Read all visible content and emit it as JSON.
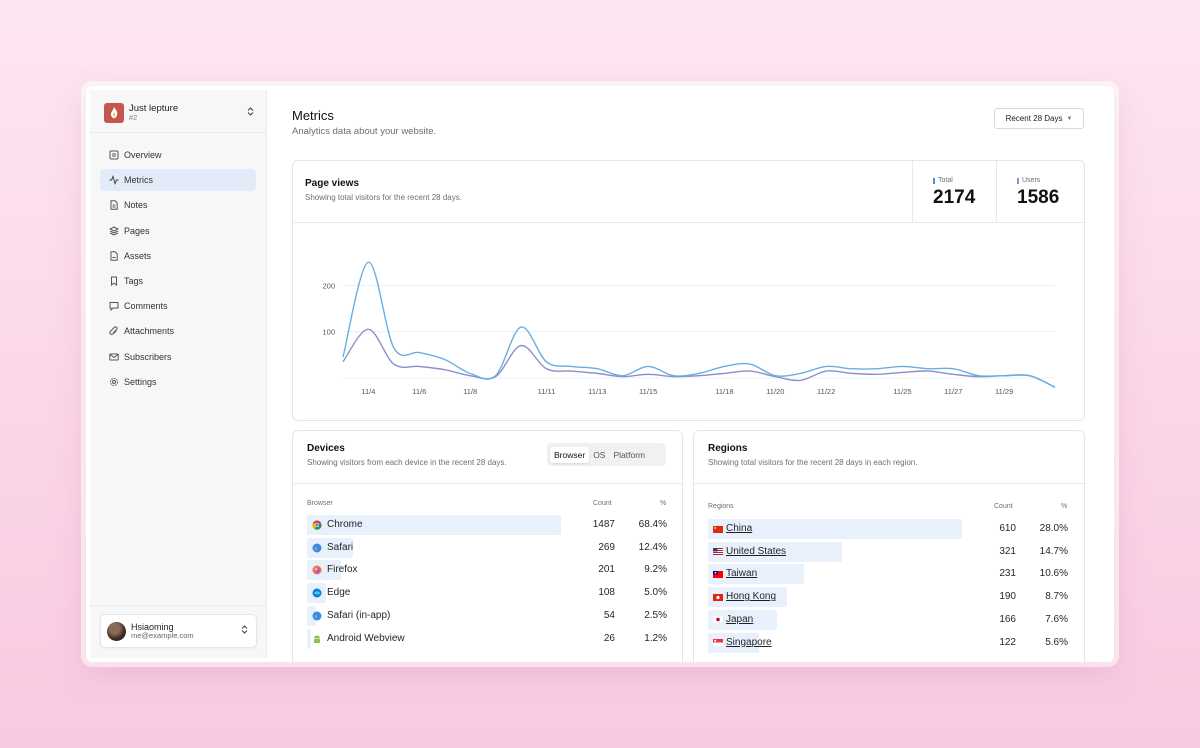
{
  "site": {
    "name": "Just lepture",
    "id": "#2"
  },
  "nav": [
    {
      "label": "Overview",
      "icon": "overview-icon",
      "active": false
    },
    {
      "label": "Metrics",
      "icon": "activity-icon",
      "active": true
    },
    {
      "label": "Notes",
      "icon": "note-icon",
      "active": false
    },
    {
      "label": "Pages",
      "icon": "layers-icon",
      "active": false
    },
    {
      "label": "Assets",
      "icon": "file-icon",
      "active": false
    },
    {
      "label": "Tags",
      "icon": "bookmark-icon",
      "active": false
    },
    {
      "label": "Comments",
      "icon": "comment-icon",
      "active": false
    },
    {
      "label": "Attachments",
      "icon": "paperclip-icon",
      "active": false
    },
    {
      "label": "Subscribers",
      "icon": "mail-icon",
      "active": false
    },
    {
      "label": "Settings",
      "icon": "gear-icon",
      "active": false
    }
  ],
  "user": {
    "name": "Hsiaoming",
    "email": "me@example.com"
  },
  "header": {
    "title": "Metrics",
    "subtitle": "Analytics data about your website.",
    "range": "Recent 28 Days"
  },
  "pageviews": {
    "title": "Page views",
    "subtitle": "Showing total visitors for the recent 28 days.",
    "total_label": "Total",
    "total": "2174",
    "users_label": "Users",
    "users": "1586"
  },
  "chart_data": {
    "type": "line",
    "title": "Page views",
    "x": [
      "11/3",
      "11/4",
      "11/5",
      "11/6",
      "11/7",
      "11/8",
      "11/9",
      "11/10",
      "11/11",
      "11/12",
      "11/13",
      "11/14",
      "11/15",
      "11/16",
      "11/17",
      "11/18",
      "11/19",
      "11/20",
      "11/21",
      "11/22",
      "11/23",
      "11/24",
      "11/25",
      "11/26",
      "11/27",
      "11/28",
      "11/29",
      "11/30",
      "12/1"
    ],
    "tick_labels": [
      "11/4",
      "11/6",
      "11/8",
      "11/11",
      "11/13",
      "11/15",
      "11/18",
      "11/20",
      "11/22",
      "11/25",
      "11/27",
      "11/29"
    ],
    "yticks": [
      100,
      200
    ],
    "ylim": [
      0,
      300
    ],
    "grid": true,
    "series": [
      {
        "name": "Total",
        "color": "#6aaee0",
        "values": [
          45,
          250,
          65,
          55,
          40,
          10,
          5,
          110,
          35,
          25,
          20,
          5,
          25,
          5,
          10,
          25,
          30,
          5,
          10,
          25,
          20,
          20,
          25,
          20,
          20,
          5,
          5,
          5,
          -20
        ]
      },
      {
        "name": "Users",
        "color": "#8b8fd0",
        "values": [
          35,
          105,
          30,
          25,
          18,
          5,
          3,
          70,
          20,
          15,
          10,
          3,
          8,
          3,
          5,
          10,
          15,
          3,
          -5,
          15,
          10,
          8,
          12,
          15,
          8,
          3,
          5,
          5,
          -20
        ]
      }
    ]
  },
  "devices": {
    "title": "Devices",
    "subtitle": "Showing visitors from each device in the recent 28 days.",
    "tabs": [
      "Browser",
      "OS",
      "Platform"
    ],
    "active_tab": "Browser",
    "col_name": "Browser",
    "col_count": "Count",
    "col_pct": "%",
    "rows": [
      {
        "name": "Chrome",
        "count": "1487",
        "pct": "68.4%",
        "icon": "chrome-icon",
        "share": 1.0
      },
      {
        "name": "Safari",
        "count": "269",
        "pct": "12.4%",
        "icon": "safari-icon",
        "share": 0.181
      },
      {
        "name": "Firefox",
        "count": "201",
        "pct": "9.2%",
        "icon": "firefox-icon",
        "share": 0.135
      },
      {
        "name": "Edge",
        "count": "108",
        "pct": "5.0%",
        "icon": "edge-icon",
        "share": 0.073
      },
      {
        "name": "Safari (in-app)",
        "count": "54",
        "pct": "2.5%",
        "icon": "safari-icon",
        "share": 0.036
      },
      {
        "name": "Android Webview",
        "count": "26",
        "pct": "1.2%",
        "icon": "android-icon",
        "share": 0.017
      }
    ]
  },
  "regions": {
    "title": "Regions",
    "subtitle": "Showing total visitors for the recent 28 days in each region.",
    "col_name": "Regions",
    "col_count": "Count",
    "col_pct": "%",
    "rows": [
      {
        "name": "China",
        "count": "610",
        "pct": "28.0%",
        "flag": "cn-flag-icon",
        "share": 1.0
      },
      {
        "name": "United States",
        "count": "321",
        "pct": "14.7%",
        "flag": "us-flag-icon",
        "share": 0.526
      },
      {
        "name": "Taiwan",
        "count": "231",
        "pct": "10.6%",
        "flag": "tw-flag-icon",
        "share": 0.379
      },
      {
        "name": "Hong Kong",
        "count": "190",
        "pct": "8.7%",
        "flag": "hk-flag-icon",
        "share": 0.311
      },
      {
        "name": "Japan",
        "count": "166",
        "pct": "7.6%",
        "flag": "jp-flag-icon",
        "share": 0.272
      },
      {
        "name": "Singapore",
        "count": "122",
        "pct": "5.6%",
        "flag": "sg-flag-icon",
        "share": 0.2
      }
    ]
  }
}
